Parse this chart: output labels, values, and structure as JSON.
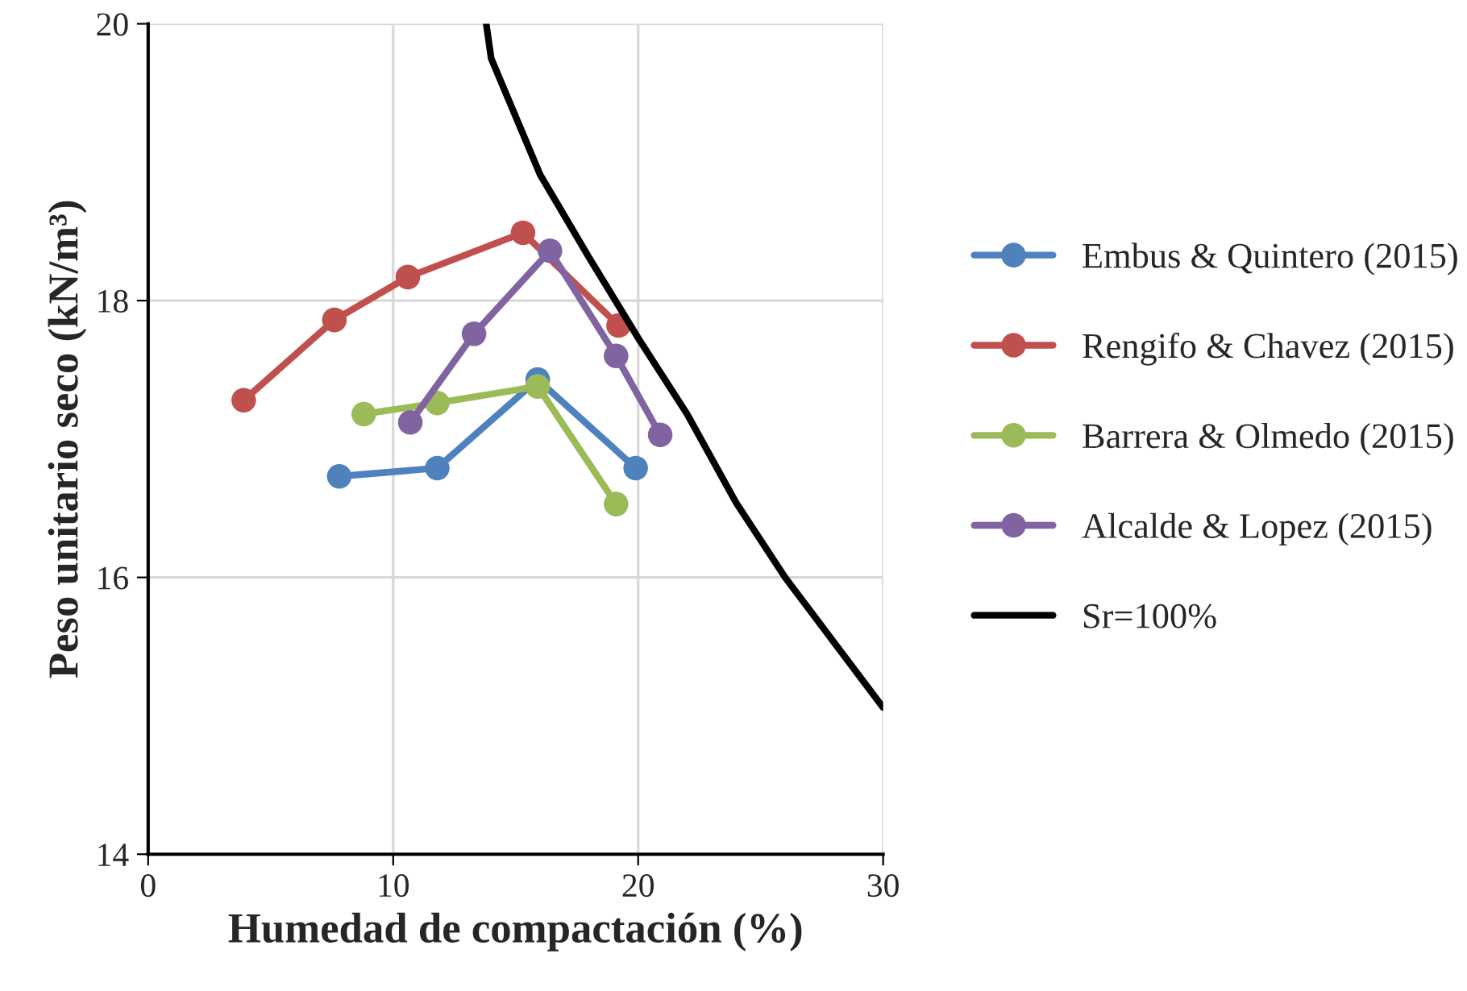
{
  "chart_data": {
    "type": "line",
    "xlabel": "Humedad de compactación (%)",
    "ylabel": "Peso unitario seco (kN/m³)",
    "xlim": [
      0,
      30
    ],
    "xticks": [
      0,
      10,
      20,
      30
    ],
    "ylim": [
      14,
      20
    ],
    "yticks": [
      14,
      16,
      18,
      20
    ],
    "grid": true,
    "legend": "right",
    "marker": "circle",
    "line_style": "solid",
    "series": [
      {
        "name": "Embus & Quintero (2015)",
        "color": "#4f81bd",
        "x": [
          7.8,
          11.8,
          15.9,
          19.9
        ],
        "values": [
          16.73,
          16.79,
          17.43,
          16.79
        ]
      },
      {
        "name": "Rengifo & Chavez (2015)",
        "color": "#c0504d",
        "x": [
          3.9,
          7.6,
          10.6,
          15.3,
          19.2
        ],
        "values": [
          17.28,
          17.86,
          18.17,
          18.49,
          17.82
        ]
      },
      {
        "name": "Barrera & Olmedo (2015)",
        "color": "#9bbb59",
        "x": [
          8.8,
          11.8,
          15.9,
          19.1
        ],
        "values": [
          17.18,
          17.26,
          17.38,
          16.53
        ]
      },
      {
        "name": "Alcalde & Lopez (2015)",
        "color": "#8064a2",
        "x": [
          10.7,
          13.3,
          16.4,
          19.1,
          20.9
        ],
        "values": [
          17.12,
          17.76,
          18.36,
          17.6,
          17.03
        ]
      },
      {
        "name": "Sr=100%",
        "color": "#000000",
        "marker": "none",
        "x": [
          13.8,
          14,
          16,
          18,
          20,
          22,
          24,
          26,
          28,
          30
        ],
        "values": [
          20.0,
          19.75,
          18.91,
          18.31,
          17.73,
          17.18,
          16.54,
          16.0,
          15.53,
          15.06
        ]
      }
    ]
  }
}
